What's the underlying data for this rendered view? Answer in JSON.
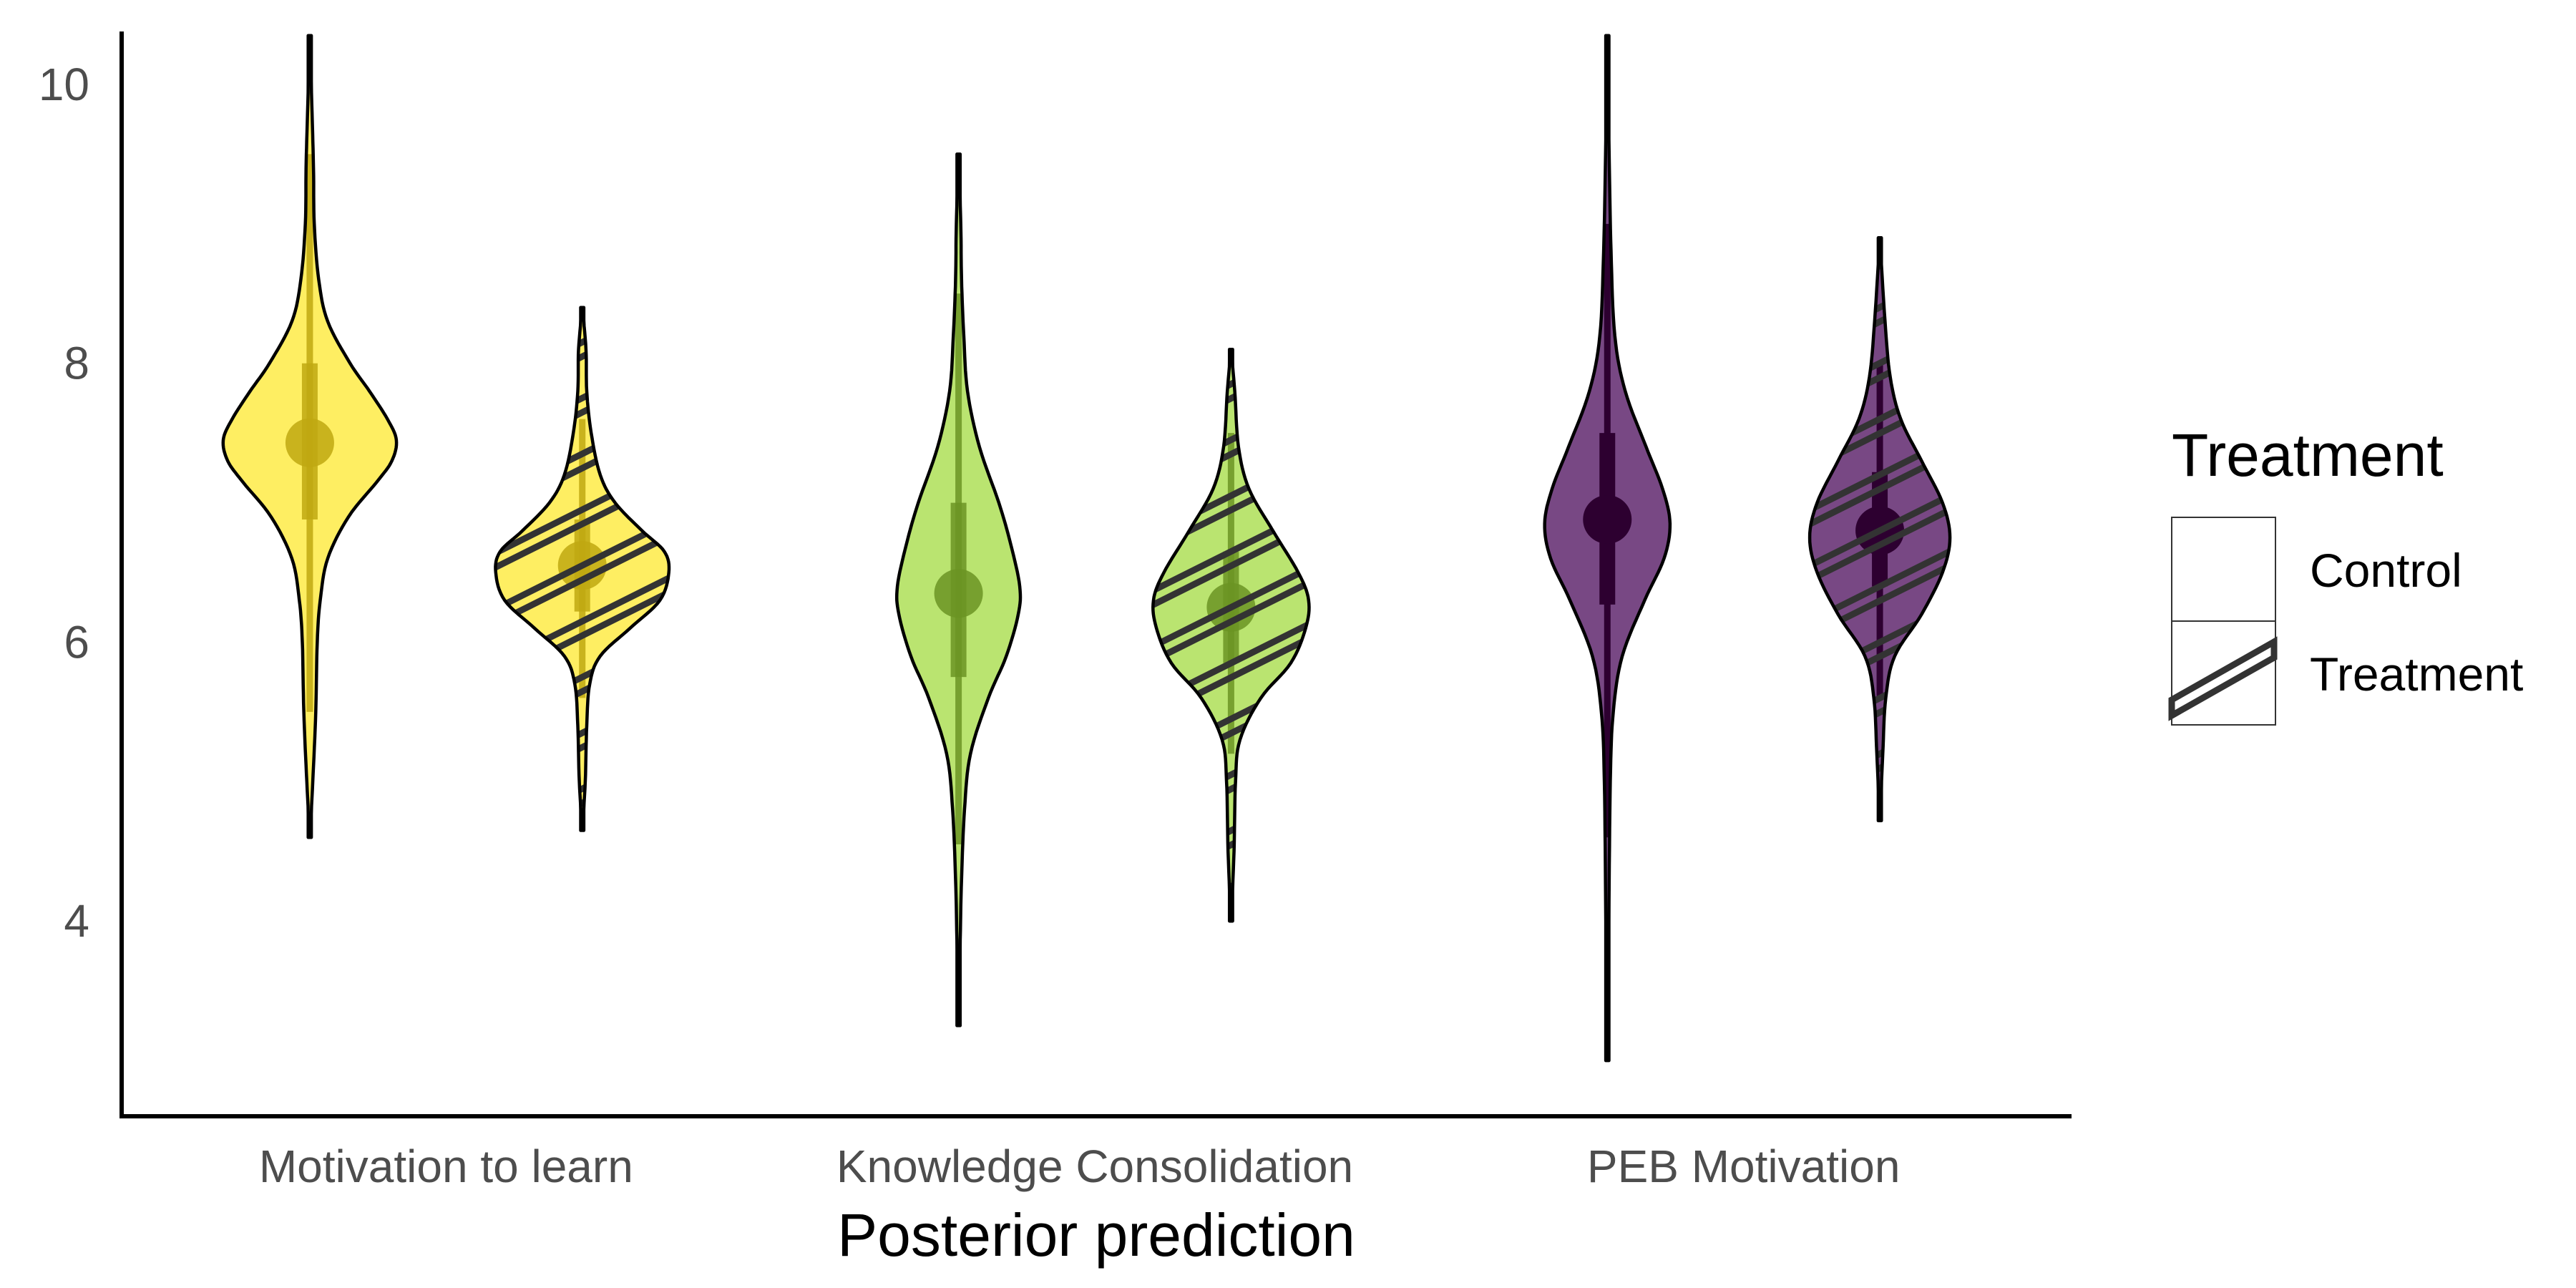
{
  "chart_data": {
    "type": "violin",
    "title": "",
    "xlabel": "Posterior prediction",
    "ylabel": "",
    "categories": [
      "Motivation to learn",
      "Knowledge Consolidation",
      "PEB Motivation"
    ],
    "yticks": [
      "4",
      "6",
      "8",
      "10"
    ],
    "ylim": [
      2.6,
      10.4
    ],
    "grid": false,
    "legend": {
      "title": "Treatment",
      "position": "right",
      "entries": [
        "Control",
        "Treatment"
      ]
    },
    "colors": {
      "Motivation to learn": "#fde725",
      "Knowledge Consolidation": "#a0da39",
      "PEB Motivation": "#440154"
    },
    "groups": [
      {
        "category": "Motivation to learn",
        "treatment": "Control",
        "min": 4.6,
        "max": 10.35,
        "median": 7.43,
        "q66": [
          6.88,
          8.0
        ],
        "q95": [
          5.5,
          9.5
        ],
        "dens": [
          [
            4.6,
            0
          ],
          [
            5.0,
            0.02
          ],
          [
            5.5,
            0.04
          ],
          [
            6.0,
            0.05
          ],
          [
            6.3,
            0.07
          ],
          [
            6.6,
            0.12
          ],
          [
            6.9,
            0.26
          ],
          [
            7.15,
            0.45
          ],
          [
            7.3,
            0.55
          ],
          [
            7.45,
            0.58
          ],
          [
            7.6,
            0.52
          ],
          [
            7.8,
            0.4
          ],
          [
            8.0,
            0.27
          ],
          [
            8.3,
            0.12
          ],
          [
            8.6,
            0.06
          ],
          [
            9.0,
            0.03
          ],
          [
            9.4,
            0.025
          ],
          [
            9.8,
            0.015
          ],
          [
            10.35,
            0
          ]
        ]
      },
      {
        "category": "Motivation to learn",
        "treatment": "Treatment",
        "min": 4.65,
        "max": 8.4,
        "median": 6.55,
        "q66": [
          6.22,
          6.88
        ],
        "q95": [
          5.6,
          7.6
        ],
        "dens": [
          [
            4.65,
            0
          ],
          [
            5.0,
            0.02
          ],
          [
            5.4,
            0.03
          ],
          [
            5.7,
            0.05
          ],
          [
            5.9,
            0.12
          ],
          [
            6.1,
            0.32
          ],
          [
            6.3,
            0.52
          ],
          [
            6.5,
            0.58
          ],
          [
            6.65,
            0.55
          ],
          [
            6.8,
            0.4
          ],
          [
            7.0,
            0.22
          ],
          [
            7.2,
            0.12
          ],
          [
            7.5,
            0.06
          ],
          [
            7.8,
            0.03
          ],
          [
            8.1,
            0.025
          ],
          [
            8.4,
            0
          ]
        ]
      },
      {
        "category": "Knowledge Consolidation",
        "treatment": "Control",
        "min": 3.25,
        "max": 9.5,
        "median": 6.35,
        "q66": [
          5.75,
          7.0
        ],
        "q95": [
          4.55,
          8.5
        ],
        "dens": [
          [
            3.25,
            0
          ],
          [
            3.8,
            0.01
          ],
          [
            4.3,
            0.02
          ],
          [
            4.8,
            0.04
          ],
          [
            5.2,
            0.08
          ],
          [
            5.6,
            0.2
          ],
          [
            5.9,
            0.32
          ],
          [
            6.2,
            0.4
          ],
          [
            6.4,
            0.41
          ],
          [
            6.7,
            0.35
          ],
          [
            7.0,
            0.27
          ],
          [
            7.4,
            0.14
          ],
          [
            7.8,
            0.06
          ],
          [
            8.2,
            0.035
          ],
          [
            8.6,
            0.02
          ],
          [
            9.0,
            0.015
          ],
          [
            9.5,
            0
          ]
        ]
      },
      {
        "category": "Knowledge Consolidation",
        "treatment": "Treatment",
        "min": 4.0,
        "max": 8.1,
        "median": 6.25,
        "q66": [
          5.85,
          6.65
        ],
        "q95": [
          5.2,
          7.5
        ],
        "dens": [
          [
            4.0,
            0
          ],
          [
            4.5,
            0.02
          ],
          [
            5.0,
            0.03
          ],
          [
            5.3,
            0.06
          ],
          [
            5.6,
            0.2
          ],
          [
            5.85,
            0.4
          ],
          [
            6.1,
            0.5
          ],
          [
            6.3,
            0.52
          ],
          [
            6.5,
            0.45
          ],
          [
            6.8,
            0.28
          ],
          [
            7.1,
            0.12
          ],
          [
            7.4,
            0.05
          ],
          [
            7.8,
            0.025
          ],
          [
            8.1,
            0
          ]
        ]
      },
      {
        "category": "PEB Motivation",
        "treatment": "Control",
        "min": 3.0,
        "max": 10.35,
        "median": 6.88,
        "q66": [
          6.27,
          7.5
        ],
        "q95": [
          4.6,
          9.0
        ],
        "dens": [
          [
            3.0,
            0
          ],
          [
            4.0,
            0.01
          ],
          [
            5.0,
            0.02
          ],
          [
            5.5,
            0.04
          ],
          [
            5.9,
            0.1
          ],
          [
            6.3,
            0.25
          ],
          [
            6.6,
            0.38
          ],
          [
            6.85,
            0.42
          ],
          [
            7.1,
            0.37
          ],
          [
            7.4,
            0.26
          ],
          [
            7.8,
            0.12
          ],
          [
            8.2,
            0.05
          ],
          [
            8.8,
            0.025
          ],
          [
            9.5,
            0.012
          ],
          [
            10.35,
            0
          ]
        ]
      },
      {
        "category": "PEB Motivation",
        "treatment": "Treatment",
        "min": 4.72,
        "max": 8.9,
        "median": 6.8,
        "q66": [
          6.4,
          7.22
        ],
        "q95": [
          5.6,
          8.0
        ],
        "dens": [
          [
            4.72,
            0
          ],
          [
            5.2,
            0.02
          ],
          [
            5.6,
            0.04
          ],
          [
            5.9,
            0.1
          ],
          [
            6.2,
            0.28
          ],
          [
            6.5,
            0.42
          ],
          [
            6.75,
            0.47
          ],
          [
            7.0,
            0.42
          ],
          [
            7.3,
            0.28
          ],
          [
            7.6,
            0.14
          ],
          [
            7.9,
            0.07
          ],
          [
            8.3,
            0.035
          ],
          [
            8.9,
            0
          ]
        ]
      }
    ]
  }
}
